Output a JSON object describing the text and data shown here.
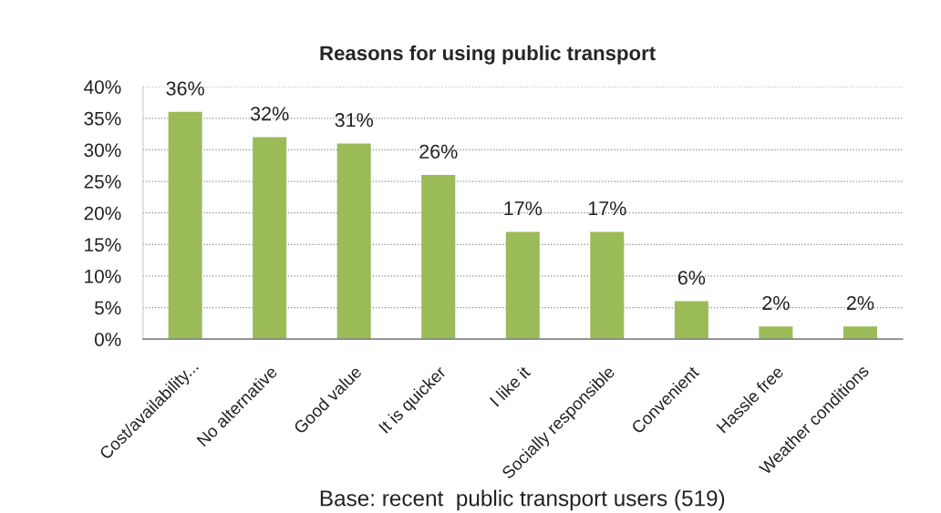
{
  "chart_data": {
    "type": "bar",
    "title": "Reasons for using public transport",
    "xlabel": "Base: recent  public transport users (519)",
    "categories": [
      "Cost/availability...",
      "No alternative",
      "Good value",
      "It is quicker",
      "I like it",
      "Socially responsible",
      "Convenient",
      "Hassle free",
      "Weather conditions"
    ],
    "values": [
      36,
      32,
      31,
      26,
      17,
      17,
      6,
      2,
      2
    ],
    "value_labels": [
      "36%",
      "32%",
      "31%",
      "26%",
      "17%",
      "17%",
      "6%",
      "2%",
      "2%"
    ],
    "color": "#9bbb59",
    "ylim": [
      0,
      40
    ],
    "yticks": [
      {
        "value": 0,
        "label": "0%"
      },
      {
        "value": 5,
        "label": "5%"
      },
      {
        "value": 10,
        "label": "10%"
      },
      {
        "value": 15,
        "label": "15%"
      },
      {
        "value": 20,
        "label": "20%"
      },
      {
        "value": 25,
        "label": "25%"
      },
      {
        "value": 30,
        "label": "30%"
      },
      {
        "value": 35,
        "label": "35%"
      },
      {
        "value": 40,
        "label": "40%"
      }
    ],
    "grid": "y"
  }
}
